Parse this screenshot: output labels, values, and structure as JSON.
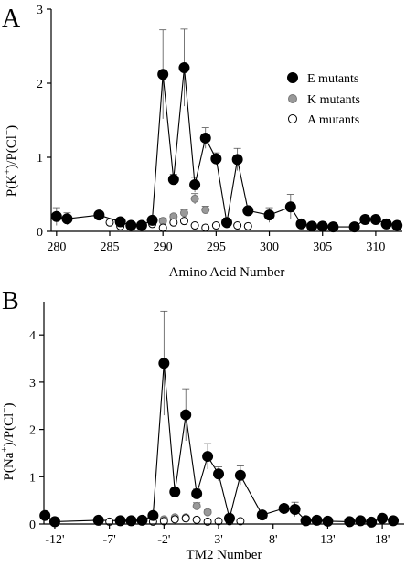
{
  "chart_data": [
    {
      "type": "scatter",
      "panel_label": "A",
      "xlabel": "Amino Acid Number",
      "ylabel_parts": {
        "p": "P(K",
        "sup_plus": "+",
        "mid": ")/P(Cl",
        "sup_minus": "−",
        "end": ")"
      },
      "xlim": [
        279.5,
        312.5
      ],
      "ylim": [
        0,
        3
      ],
      "x_ticks": [
        280,
        285,
        290,
        295,
        300,
        305,
        310
      ],
      "x_tick_labels": [
        "280",
        "285",
        "290",
        "295",
        "300",
        "305",
        "310"
      ],
      "y_ticks": [
        0,
        1,
        2,
        3
      ],
      "y_tick_labels": [
        "0",
        "1",
        "2",
        "3"
      ],
      "legend": {
        "position": "right",
        "items": [
          {
            "label": "E mutants",
            "marker": "filled-black"
          },
          {
            "label": "K mutants",
            "marker": "filled-gray"
          },
          {
            "label": "A mutants",
            "marker": "open-white"
          }
        ]
      },
      "series": [
        {
          "name": "E mutants",
          "marker": "filled-black",
          "connected": true,
          "x": [
            280,
            281,
            284,
            286,
            287,
            288,
            289,
            290,
            291,
            292,
            293,
            294,
            295,
            296,
            297,
            298,
            300,
            302,
            303,
            304,
            305,
            306,
            308,
            309,
            310,
            311,
            312
          ],
          "y": [
            0.2,
            0.17,
            0.22,
            0.13,
            0.08,
            0.08,
            0.15,
            2.12,
            0.7,
            2.21,
            0.63,
            1.26,
            0.98,
            0.12,
            0.97,
            0.28,
            0.22,
            0.33,
            0.1,
            0.07,
            0.07,
            0.06,
            0.06,
            0.16,
            0.16,
            0.1,
            0.08
          ],
          "err": [
            0.12,
            0.08,
            0.04,
            0.03,
            0.02,
            0.02,
            0.05,
            0.6,
            0.07,
            0.52,
            0.1,
            0.14,
            0.08,
            0.06,
            0.15,
            0.03,
            0.1,
            0.17,
            0.04,
            0.02,
            0.02,
            0.02,
            0.02,
            0.04,
            0.03,
            0.02,
            0.02
          ]
        },
        {
          "name": "K mutants",
          "marker": "filled-gray",
          "connected": false,
          "x": [
            290,
            291,
            292,
            293,
            294
          ],
          "y": [
            0.14,
            0.2,
            0.25,
            0.44,
            0.29
          ],
          "err": [
            0.04,
            0.03,
            0.04,
            0.07,
            0.05
          ]
        },
        {
          "name": "A mutants",
          "marker": "open-white",
          "connected": false,
          "x": [
            285,
            286,
            289,
            290,
            291,
            292,
            293,
            294,
            295,
            296,
            297,
            298
          ],
          "y": [
            0.12,
            0.07,
            0.1,
            0.05,
            0.12,
            0.14,
            0.08,
            0.05,
            0.08,
            0.1,
            0.08,
            0.07
          ],
          "err": [
            0.02,
            0.02,
            0.02,
            0.02,
            0.03,
            0.03,
            0.02,
            0.02,
            0.02,
            0.02,
            0.02,
            0.02
          ]
        }
      ]
    },
    {
      "type": "scatter",
      "panel_label": "B",
      "xlabel": "TM2 Number",
      "ylabel_parts": {
        "p": "P(Na",
        "sup_plus": "+",
        "mid": ")/P(Cl",
        "sup_minus": "−",
        "end": ")"
      },
      "xlim": [
        -13,
        20
      ],
      "ylim": [
        0,
        4.7
      ],
      "x_ticks": [
        -12,
        -7,
        -2,
        3,
        8,
        13,
        18
      ],
      "x_tick_labels": [
        "-12'",
        "-7'",
        "-2'",
        "3'",
        "8'",
        "13'",
        "18'"
      ],
      "y_ticks": [
        0,
        1,
        2,
        3,
        4
      ],
      "y_tick_labels": [
        "0",
        "1",
        "2",
        "3",
        "4"
      ],
      "series": [
        {
          "name": "E mutants",
          "marker": "filled-black",
          "connected": true,
          "x": [
            -12.9,
            -12,
            -8,
            -6,
            -5,
            -4,
            -3,
            -2,
            -1,
            0,
            1,
            2,
            3,
            4,
            5,
            7,
            9,
            10,
            11,
            12,
            13,
            15,
            16,
            17,
            18,
            19
          ],
          "y": [
            0.18,
            0.05,
            0.08,
            0.07,
            0.07,
            0.08,
            0.18,
            3.4,
            0.68,
            2.31,
            0.64,
            1.43,
            1.06,
            0.12,
            1.03,
            0.19,
            0.33,
            0.31,
            0.07,
            0.08,
            0.06,
            0.05,
            0.07,
            0.04,
            0.12,
            0.07
          ],
          "err": [
            0.04,
            0.02,
            0.02,
            0.02,
            0.02,
            0.02,
            0.05,
            1.1,
            0.1,
            0.55,
            0.1,
            0.27,
            0.15,
            0.04,
            0.2,
            0.04,
            0.05,
            0.15,
            0.02,
            0.02,
            0.02,
            0.02,
            0.02,
            0.02,
            0.03,
            0.02
          ]
        },
        {
          "name": "K mutants",
          "marker": "filled-gray",
          "connected": false,
          "x": [
            -2,
            -1,
            0,
            1,
            2
          ],
          "y": [
            0.1,
            0.14,
            0.14,
            0.38,
            0.25
          ],
          "err": [
            0.03,
            0.03,
            0.03,
            0.07,
            0.05
          ]
        },
        {
          "name": "A mutants",
          "marker": "open-white",
          "connected": false,
          "x": [
            -7,
            -6,
            -3,
            -2,
            -1,
            0,
            1,
            2,
            3,
            4,
            5
          ],
          "y": [
            0.05,
            0.05,
            0.05,
            0.06,
            0.1,
            0.12,
            0.09,
            0.05,
            0.06,
            0.06,
            0.06
          ],
          "err": [
            0.02,
            0.02,
            0.02,
            0.02,
            0.02,
            0.02,
            0.02,
            0.02,
            0.02,
            0.02,
            0.02
          ]
        }
      ]
    }
  ]
}
